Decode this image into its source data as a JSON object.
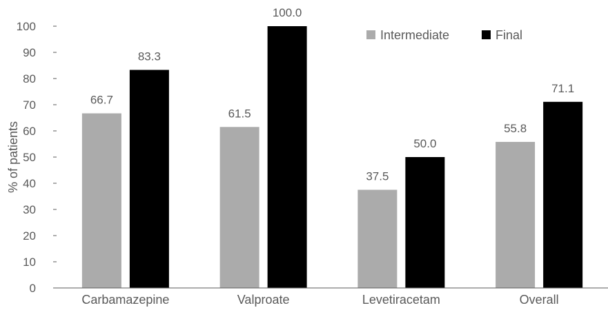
{
  "chart_data": {
    "type": "bar",
    "title": "",
    "xlabel": "",
    "ylabel": "% of patients",
    "categories": [
      "Carbamazepine",
      "Valproate",
      "Levetiracetam",
      "Overall"
    ],
    "series": [
      {
        "name": "Intermediate",
        "color": "#ababab",
        "values": [
          66.7,
          61.5,
          37.5,
          55.8
        ],
        "labels": [
          "66.7",
          "61.5",
          "37.5",
          "55.8"
        ]
      },
      {
        "name": "Final",
        "color": "#000000",
        "values": [
          83.3,
          100.0,
          50.0,
          71.1
        ],
        "labels": [
          "83.3",
          "100.0",
          "50.0",
          "71.1"
        ]
      }
    ],
    "ylim": [
      0,
      100
    ],
    "yticks": [
      0,
      10,
      20,
      30,
      40,
      50,
      60,
      70,
      80,
      90,
      100
    ],
    "grid": false,
    "legend_position": "top-right",
    "axis_color": "#595959"
  }
}
